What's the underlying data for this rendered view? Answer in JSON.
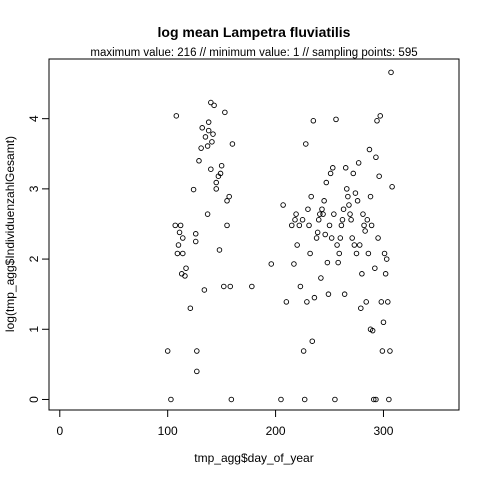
{
  "chart_data": {
    "type": "scatter",
    "title": "log mean Lampetra fluviatilis",
    "subtitle": "maximum value: 216  //  minimum value: 1  // sampling points: 595",
    "xlabel": "tmp_agg$day_of_year",
    "ylabel": "log(tmp_agg$IndividuenzahlGesamt)",
    "xlim": [
      -10,
      370
    ],
    "ylim": [
      -0.15,
      4.85
    ],
    "xticks": [
      0,
      100,
      200,
      300
    ],
    "yticks": [
      0,
      1,
      2,
      3,
      4
    ],
    "grid": false,
    "legend": "none",
    "point_color": "#000000",
    "points": [
      [
        100,
        0.69
      ],
      [
        103,
        0.0
      ],
      [
        107,
        2.48
      ],
      [
        108,
        4.04
      ],
      [
        109,
        2.08
      ],
      [
        110,
        2.2
      ],
      [
        111,
        2.38
      ],
      [
        112,
        2.48
      ],
      [
        113,
        1.79
      ],
      [
        114,
        2.3
      ],
      [
        114,
        2.08
      ],
      [
        116,
        1.76
      ],
      [
        117,
        1.87
      ],
      [
        121,
        1.3
      ],
      [
        124,
        2.99
      ],
      [
        126,
        2.25
      ],
      [
        126,
        2.36
      ],
      [
        127,
        0.4
      ],
      [
        127,
        0.69
      ],
      [
        129,
        3.4
      ],
      [
        131,
        3.58
      ],
      [
        132,
        3.87
      ],
      [
        134,
        1.56
      ],
      [
        135,
        3.74
      ],
      [
        137,
        3.61
      ],
      [
        137,
        2.64
      ],
      [
        138,
        3.95
      ],
      [
        138,
        3.83
      ],
      [
        140,
        3.28
      ],
      [
        140,
        4.23
      ],
      [
        141,
        3.67
      ],
      [
        142,
        3.78
      ],
      [
        143,
        4.19
      ],
      [
        145,
        3.09
      ],
      [
        145,
        3.0
      ],
      [
        147,
        3.18
      ],
      [
        148,
        2.13
      ],
      [
        149,
        3.22
      ],
      [
        150,
        3.33
      ],
      [
        152,
        1.61
      ],
      [
        153,
        4.09
      ],
      [
        155,
        2.48
      ],
      [
        155,
        2.83
      ],
      [
        157,
        2.89
      ],
      [
        158,
        1.61
      ],
      [
        159,
        0.0
      ],
      [
        160,
        3.64
      ],
      [
        178,
        1.61
      ],
      [
        196,
        1.93
      ],
      [
        205,
        0.0
      ],
      [
        207,
        2.77
      ],
      [
        210,
        1.39
      ],
      [
        215,
        2.48
      ],
      [
        217,
        1.93
      ],
      [
        218,
        2.56
      ],
      [
        219,
        2.64
      ],
      [
        220,
        2.2
      ],
      [
        222,
        2.48
      ],
      [
        223,
        1.61
      ],
      [
        225,
        2.56
      ],
      [
        226,
        0.69
      ],
      [
        227,
        0.0
      ],
      [
        228,
        3.64
      ],
      [
        229,
        1.39
      ],
      [
        230,
        2.71
      ],
      [
        231,
        2.48
      ],
      [
        232,
        2.08
      ],
      [
        233,
        2.89
      ],
      [
        234,
        0.83
      ],
      [
        235,
        3.97
      ],
      [
        236,
        1.45
      ],
      [
        238,
        2.3
      ],
      [
        239,
        2.38
      ],
      [
        240,
        2.56
      ],
      [
        241,
        2.64
      ],
      [
        242,
        1.73
      ],
      [
        243,
        2.71
      ],
      [
        244,
        2.64
      ],
      [
        245,
        2.83
      ],
      [
        246,
        2.35
      ],
      [
        247,
        3.09
      ],
      [
        248,
        1.95
      ],
      [
        249,
        1.5
      ],
      [
        250,
        2.48
      ],
      [
        251,
        3.22
      ],
      [
        252,
        2.3
      ],
      [
        253,
        3.3
      ],
      [
        254,
        2.64
      ],
      [
        255,
        0.0
      ],
      [
        256,
        3.99
      ],
      [
        257,
        2.2
      ],
      [
        258,
        1.95
      ],
      [
        259,
        2.08
      ],
      [
        260,
        2.3
      ],
      [
        261,
        2.48
      ],
      [
        262,
        2.56
      ],
      [
        263,
        2.71
      ],
      [
        264,
        1.5
      ],
      [
        265,
        3.3
      ],
      [
        266,
        3.0
      ],
      [
        267,
        2.89
      ],
      [
        268,
        2.77
      ],
      [
        269,
        2.64
      ],
      [
        270,
        2.56
      ],
      [
        271,
        2.3
      ],
      [
        272,
        3.22
      ],
      [
        273,
        2.2
      ],
      [
        274,
        2.94
      ],
      [
        275,
        2.08
      ],
      [
        276,
        2.83
      ],
      [
        277,
        3.37
      ],
      [
        278,
        2.2
      ],
      [
        279,
        1.3
      ],
      [
        280,
        1.79
      ],
      [
        281,
        2.64
      ],
      [
        282,
        2.48
      ],
      [
        283,
        2.4
      ],
      [
        284,
        1.39
      ],
      [
        285,
        2.56
      ],
      [
        286,
        2.08
      ],
      [
        287,
        3.56
      ],
      [
        288,
        1.0
      ],
      [
        289,
        2.48
      ],
      [
        290,
        0.98
      ],
      [
        291,
        0.0
      ],
      [
        292,
        1.87
      ],
      [
        293,
        3.45
      ],
      [
        294,
        3.97
      ],
      [
        295,
        2.3
      ],
      [
        296,
        3.18
      ],
      [
        297,
        4.04
      ],
      [
        298,
        1.39
      ],
      [
        299,
        0.69
      ],
      [
        300,
        1.1
      ],
      [
        301,
        2.08
      ],
      [
        302,
        1.79
      ],
      [
        303,
        2.0
      ],
      [
        304,
        1.39
      ],
      [
        305,
        0.0
      ],
      [
        306,
        0.69
      ],
      [
        307,
        4.66
      ],
      [
        308,
        3.03
      ],
      [
        293,
        0.0
      ],
      [
        288,
        2.89
      ]
    ]
  }
}
